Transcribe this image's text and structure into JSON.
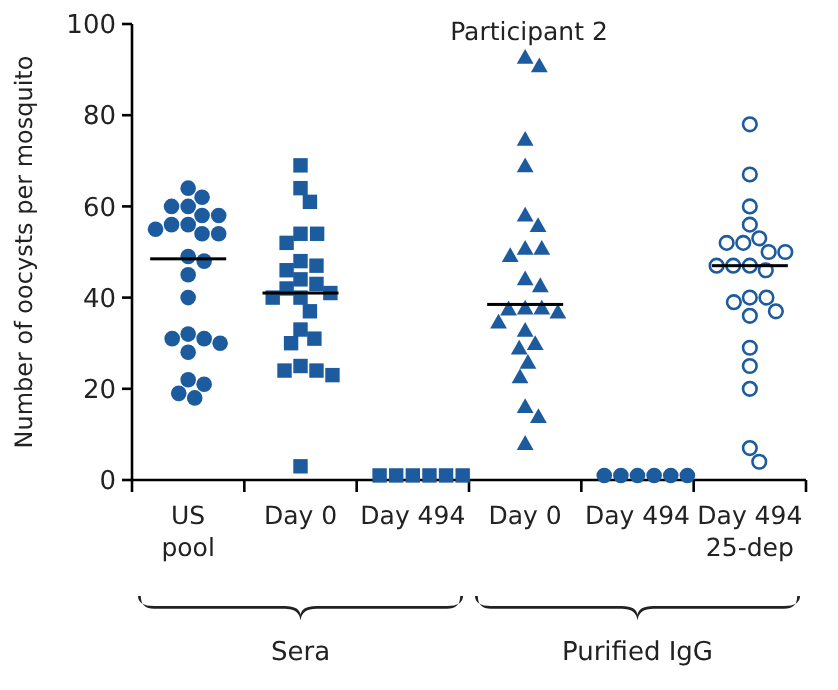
{
  "chart_data": {
    "type": "scatter",
    "title": "Participant 2",
    "ylabel": "Number of oocysts per mosquito",
    "categories": [
      "US\npool",
      "Day 0",
      "Day 494",
      "Day 0",
      "Day 494",
      "Day 494\n25-dep"
    ],
    "ylim": [
      0,
      100
    ],
    "yticks": [
      0,
      20,
      40,
      60,
      80,
      100
    ],
    "annotations": [
      "Sera",
      "Purified IgG"
    ],
    "series": [
      {
        "color": "#1c5b9e",
        "marker": "circle",
        "values": [
          64,
          null,
          null,
          null,
          1,
          null
        ]
      },
      {
        "color": "#1c5b9e",
        "marker": "circle",
        "values": [
          62,
          null,
          null,
          null,
          1,
          null
        ]
      },
      {
        "color": "#1c5b9e",
        "marker": "circle",
        "values": [
          60,
          null,
          null,
          null,
          1,
          null
        ]
      },
      {
        "color": "#1c5b9e",
        "marker": "circle",
        "values": [
          60,
          null,
          null,
          null,
          1,
          null
        ]
      },
      {
        "color": "#1c5b9e",
        "marker": "circle",
        "values": [
          58,
          null,
          null,
          null,
          1,
          null
        ]
      },
      {
        "color": "#1c5b9e",
        "marker": "circle",
        "values": [
          58,
          null,
          null,
          null,
          1,
          null
        ]
      },
      {
        "color": "#1c5b9e",
        "marker": "circle",
        "values": [
          56,
          null,
          null,
          null,
          null,
          null
        ]
      },
      {
        "color": "#1c5b9e",
        "marker": "circle",
        "values": [
          56,
          null,
          null,
          null,
          null,
          null
        ]
      },
      {
        "color": "#1c5b9e",
        "marker": "circle",
        "values": [
          54,
          null,
          null,
          null,
          null,
          null
        ]
      },
      {
        "color": "#1c5b9e",
        "marker": "circle",
        "values": [
          55,
          null,
          null,
          null,
          null,
          null
        ]
      },
      {
        "color": "#1c5b9e",
        "marker": "circle",
        "values": [
          54,
          null,
          null,
          null,
          null,
          null
        ]
      },
      {
        "color": "#1c5b9e",
        "marker": "circle",
        "values": [
          49,
          null,
          null,
          null,
          null,
          null
        ]
      },
      {
        "color": "#1c5b9e",
        "marker": "circle",
        "values": [
          48,
          null,
          null,
          null,
          null,
          null
        ]
      },
      {
        "color": "#1c5b9e",
        "marker": "circle",
        "values": [
          45,
          null,
          null,
          null,
          null,
          null
        ]
      },
      {
        "color": "#1c5b9e",
        "marker": "circle",
        "values": [
          40,
          null,
          null,
          null,
          null,
          null
        ]
      },
      {
        "color": "#1c5b9e",
        "marker": "circle",
        "values": [
          31,
          null,
          null,
          null,
          null,
          null
        ]
      },
      {
        "color": "#1c5b9e",
        "marker": "circle",
        "values": [
          30,
          null,
          null,
          null,
          null,
          null
        ]
      },
      {
        "color": "#1c5b9e",
        "marker": "circle",
        "values": [
          28,
          null,
          null,
          null,
          null,
          null
        ]
      },
      {
        "color": "#1c5b9e",
        "marker": "circle",
        "values": [
          31,
          null,
          null,
          null,
          null,
          null
        ]
      },
      {
        "color": "#1c5b9e",
        "marker": "circle",
        "values": [
          32,
          null,
          null,
          null,
          null,
          null
        ]
      },
      {
        "color": "#1c5b9e",
        "marker": "circle",
        "values": [
          21,
          null,
          null,
          null,
          null,
          null
        ]
      },
      {
        "color": "#1c5b9e",
        "marker": "circle",
        "values": [
          22,
          null,
          null,
          null,
          null,
          null
        ]
      },
      {
        "color": "#1c5b9e",
        "marker": "circle",
        "values": [
          18,
          null,
          null,
          null,
          null,
          null
        ]
      },
      {
        "color": "#1c5b9e",
        "marker": "circle",
        "values": [
          19,
          null,
          null,
          null,
          null,
          null
        ]
      },
      {
        "color": "#1c5b9e",
        "marker": "square",
        "values": [
          null,
          69,
          1,
          null,
          null,
          null
        ]
      },
      {
        "color": "#1c5b9e",
        "marker": "square",
        "values": [
          null,
          64,
          1,
          null,
          null,
          null
        ]
      },
      {
        "color": "#1c5b9e",
        "marker": "square",
        "values": [
          null,
          61,
          1,
          null,
          null,
          null
        ]
      },
      {
        "color": "#1c5b9e",
        "marker": "square",
        "values": [
          null,
          54,
          1,
          null,
          null,
          null
        ]
      },
      {
        "color": "#1c5b9e",
        "marker": "square",
        "values": [
          null,
          54,
          1,
          null,
          null,
          null
        ]
      },
      {
        "color": "#1c5b9e",
        "marker": "square",
        "values": [
          null,
          52,
          1,
          null,
          null,
          null
        ]
      },
      {
        "color": "#1c5b9e",
        "marker": "square",
        "values": [
          null,
          48,
          null,
          null,
          null,
          null
        ]
      },
      {
        "color": "#1c5b9e",
        "marker": "square",
        "values": [
          null,
          47,
          null,
          null,
          null,
          null
        ]
      },
      {
        "color": "#1c5b9e",
        "marker": "square",
        "values": [
          null,
          46,
          null,
          null,
          null,
          null
        ]
      },
      {
        "color": "#1c5b9e",
        "marker": "square",
        "values": [
          null,
          44,
          null,
          null,
          null,
          null
        ]
      },
      {
        "color": "#1c5b9e",
        "marker": "square",
        "values": [
          null,
          43,
          null,
          null,
          null,
          null
        ]
      },
      {
        "color": "#1c5b9e",
        "marker": "square",
        "values": [
          null,
          42,
          null,
          null,
          null,
          null
        ]
      },
      {
        "color": "#1c5b9e",
        "marker": "square",
        "values": [
          null,
          41,
          null,
          null,
          null,
          null
        ]
      },
      {
        "color": "#1c5b9e",
        "marker": "square",
        "values": [
          null,
          40,
          null,
          null,
          null,
          null
        ]
      },
      {
        "color": "#1c5b9e",
        "marker": "square",
        "values": [
          null,
          40,
          null,
          null,
          null,
          null
        ]
      },
      {
        "color": "#1c5b9e",
        "marker": "square",
        "values": [
          null,
          37,
          null,
          null,
          null,
          null
        ]
      },
      {
        "color": "#1c5b9e",
        "marker": "square",
        "values": [
          null,
          33,
          null,
          null,
          null,
          null
        ]
      },
      {
        "color": "#1c5b9e",
        "marker": "square",
        "values": [
          null,
          30,
          null,
          null,
          null,
          null
        ]
      },
      {
        "color": "#1c5b9e",
        "marker": "square",
        "values": [
          null,
          31,
          null,
          null,
          null,
          null
        ]
      },
      {
        "color": "#1c5b9e",
        "marker": "square",
        "values": [
          null,
          25,
          null,
          null,
          null,
          null
        ]
      },
      {
        "color": "#1c5b9e",
        "marker": "square",
        "values": [
          null,
          24,
          null,
          null,
          null,
          null
        ]
      },
      {
        "color": "#1c5b9e",
        "marker": "square",
        "values": [
          null,
          23,
          null,
          null,
          null,
          null
        ]
      },
      {
        "color": "#1c5b9e",
        "marker": "square",
        "values": [
          null,
          24,
          null,
          null,
          null,
          null
        ]
      },
      {
        "color": "#1c5b9e",
        "marker": "square",
        "values": [
          null,
          3,
          null,
          null,
          null,
          null
        ]
      },
      {
        "color": "#1c5b9e",
        "marker": "triangle",
        "values": [
          null,
          null,
          null,
          92.7,
          null,
          null
        ]
      },
      {
        "color": "#1c5b9e",
        "marker": "triangle",
        "values": [
          null,
          null,
          null,
          90.8,
          null,
          null
        ]
      },
      {
        "color": "#1c5b9e",
        "marker": "triangle",
        "values": [
          null,
          null,
          null,
          74.7,
          null,
          null
        ]
      },
      {
        "color": "#1c5b9e",
        "marker": "triangle",
        "values": [
          null,
          null,
          null,
          68.9,
          null,
          null
        ]
      },
      {
        "color": "#1c5b9e",
        "marker": "triangle",
        "values": [
          null,
          null,
          null,
          55.8,
          null,
          null
        ]
      },
      {
        "color": "#1c5b9e",
        "marker": "triangle",
        "values": [
          null,
          null,
          null,
          58.1,
          null,
          null
        ]
      },
      {
        "color": "#1c5b9e",
        "marker": "triangle",
        "values": [
          null,
          null,
          null,
          49.2,
          null,
          null
        ]
      },
      {
        "color": "#1c5b9e",
        "marker": "triangle",
        "values": [
          null,
          null,
          null,
          50.8,
          null,
          null
        ]
      },
      {
        "color": "#1c5b9e",
        "marker": "triangle",
        "values": [
          null,
          null,
          null,
          50.8,
          null,
          null
        ]
      },
      {
        "color": "#1c5b9e",
        "marker": "triangle",
        "values": [
          null,
          null,
          null,
          42.6,
          null,
          null
        ]
      },
      {
        "color": "#1c5b9e",
        "marker": "triangle",
        "values": [
          null,
          null,
          null,
          44.1,
          null,
          null
        ]
      },
      {
        "color": "#1c5b9e",
        "marker": "triangle",
        "values": [
          null,
          null,
          null,
          37.5,
          null,
          null
        ]
      },
      {
        "color": "#1c5b9e",
        "marker": "triangle",
        "values": [
          null,
          null,
          null,
          36.8,
          null,
          null
        ]
      },
      {
        "color": "#1c5b9e",
        "marker": "triangle",
        "values": [
          null,
          null,
          null,
          37.7,
          null,
          null
        ]
      },
      {
        "color": "#1c5b9e",
        "marker": "triangle",
        "values": [
          null,
          null,
          null,
          37.7,
          null,
          null
        ]
      },
      {
        "color": "#1c5b9e",
        "marker": "triangle",
        "values": [
          null,
          null,
          null,
          32.8,
          null,
          null
        ]
      },
      {
        "color": "#1c5b9e",
        "marker": "triangle",
        "values": [
          null,
          null,
          null,
          34.6,
          null,
          null
        ]
      },
      {
        "color": "#1c5b9e",
        "marker": "triangle",
        "values": [
          null,
          null,
          null,
          28.9,
          null,
          null
        ]
      },
      {
        "color": "#1c5b9e",
        "marker": "triangle",
        "values": [
          null,
          null,
          null,
          29.9,
          null,
          null
        ]
      },
      {
        "color": "#1c5b9e",
        "marker": "triangle",
        "values": [
          null,
          null,
          null,
          25.8,
          null,
          null
        ]
      },
      {
        "color": "#1c5b9e",
        "marker": "triangle",
        "values": [
          null,
          null,
          null,
          22.6,
          null,
          null
        ]
      },
      {
        "color": "#1c5b9e",
        "marker": "triangle",
        "values": [
          null,
          null,
          null,
          16.1,
          null,
          null
        ]
      },
      {
        "color": "#1c5b9e",
        "marker": "triangle",
        "values": [
          null,
          null,
          null,
          13.9,
          null,
          null
        ]
      },
      {
        "color": "#1c5b9e",
        "marker": "triangle",
        "values": [
          null,
          null,
          null,
          8,
          null,
          null
        ]
      },
      {
        "color": "#1c5b9e",
        "marker": "circle-open",
        "values": [
          null,
          null,
          null,
          null,
          null,
          78
        ]
      },
      {
        "color": "#1c5b9e",
        "marker": "circle-open",
        "values": [
          null,
          null,
          null,
          null,
          null,
          67
        ]
      },
      {
        "color": "#1c5b9e",
        "marker": "circle-open",
        "values": [
          null,
          null,
          null,
          null,
          null,
          60
        ]
      },
      {
        "color": "#1c5b9e",
        "marker": "circle-open",
        "values": [
          null,
          null,
          null,
          null,
          null,
          56
        ]
      },
      {
        "color": "#1c5b9e",
        "marker": "circle-open",
        "values": [
          null,
          null,
          null,
          null,
          null,
          52
        ]
      },
      {
        "color": "#1c5b9e",
        "marker": "circle-open",
        "values": [
          null,
          null,
          null,
          null,
          null,
          52
        ]
      },
      {
        "color": "#1c5b9e",
        "marker": "circle-open",
        "values": [
          null,
          null,
          null,
          null,
          null,
          53
        ]
      },
      {
        "color": "#1c5b9e",
        "marker": "circle-open",
        "values": [
          null,
          null,
          null,
          null,
          null,
          50
        ]
      },
      {
        "color": "#1c5b9e",
        "marker": "circle-open",
        "values": [
          null,
          null,
          null,
          null,
          null,
          50
        ]
      },
      {
        "color": "#1c5b9e",
        "marker": "circle-open",
        "values": [
          null,
          null,
          null,
          null,
          null,
          47
        ]
      },
      {
        "color": "#1c5b9e",
        "marker": "circle-open",
        "values": [
          null,
          null,
          null,
          null,
          null,
          47
        ]
      },
      {
        "color": "#1c5b9e",
        "marker": "circle-open",
        "values": [
          null,
          null,
          null,
          null,
          null,
          47
        ]
      },
      {
        "color": "#1c5b9e",
        "marker": "circle-open",
        "values": [
          null,
          null,
          null,
          null,
          null,
          46
        ]
      },
      {
        "color": "#1c5b9e",
        "marker": "circle-open",
        "values": [
          null,
          null,
          null,
          null,
          null,
          40
        ]
      },
      {
        "color": "#1c5b9e",
        "marker": "circle-open",
        "values": [
          null,
          null,
          null,
          null,
          null,
          40
        ]
      },
      {
        "color": "#1c5b9e",
        "marker": "circle-open",
        "values": [
          null,
          null,
          null,
          null,
          null,
          39
        ]
      },
      {
        "color": "#1c5b9e",
        "marker": "circle-open",
        "values": [
          null,
          null,
          null,
          null,
          null,
          37
        ]
      },
      {
        "color": "#1c5b9e",
        "marker": "circle-open",
        "values": [
          null,
          null,
          null,
          null,
          null,
          36
        ]
      },
      {
        "color": "#1c5b9e",
        "marker": "circle-open",
        "values": [
          null,
          null,
          null,
          null,
          null,
          29
        ]
      },
      {
        "color": "#1c5b9e",
        "marker": "circle-open",
        "values": [
          null,
          null,
          null,
          null,
          null,
          25
        ]
      },
      {
        "color": "#1c5b9e",
        "marker": "circle-open",
        "values": [
          null,
          null,
          null,
          null,
          null,
          20
        ]
      },
      {
        "color": "#1c5b9e",
        "marker": "circle-open",
        "values": [
          null,
          null,
          null,
          null,
          null,
          7
        ]
      },
      {
        "color": "#1c5b9e",
        "marker": "circle-open",
        "values": [
          null,
          null,
          null,
          null,
          null,
          4
        ]
      },
      {
        "type": "box",
        "color": "#000000",
        "boxes": [
          {
            "low": 48.5,
            "q1": 48.5,
            "median": 48.5,
            "q3": 48.5,
            "high": 48.5
          },
          {
            "low": 41,
            "q1": 41,
            "median": 41,
            "q3": 41,
            "high": 41
          },
          null,
          {
            "low": 38.5,
            "q1": 38.5,
            "median": 38.5,
            "q3": 38.5,
            "high": 38.5
          },
          null,
          {
            "low": 47,
            "q1": 47,
            "median": 47,
            "q3": 47,
            "high": 47
          }
        ]
      }
    ]
  }
}
